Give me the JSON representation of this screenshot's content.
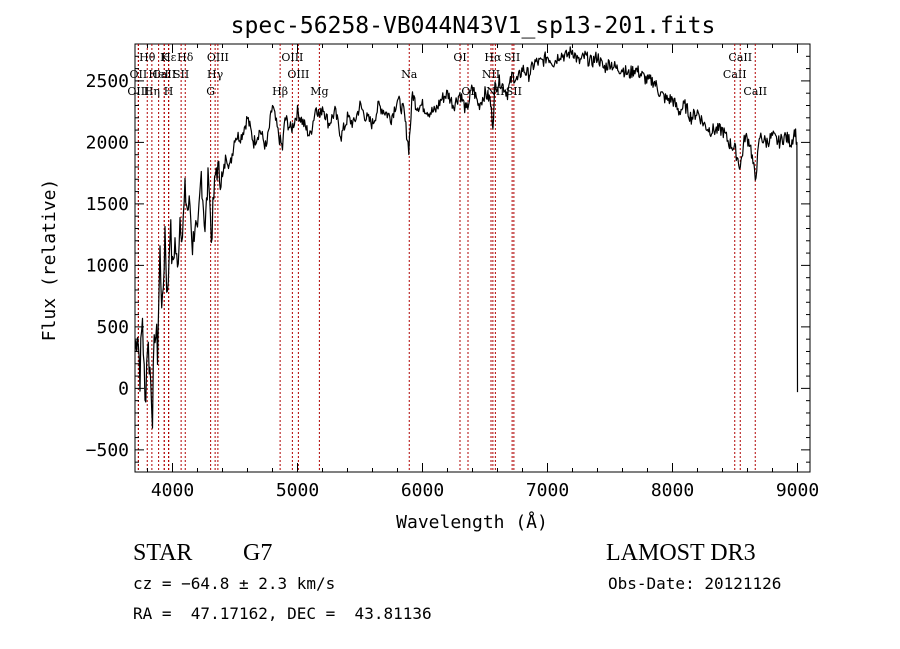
{
  "chart_data": {
    "type": "line",
    "title": "spec-56258-VB044N43V1_sp13-201.fits",
    "xlabel": "Wavelength (Å)",
    "ylabel": "Flux (relative)",
    "xlim": [
      3700,
      9100
    ],
    "ylim": [
      -680,
      2800
    ],
    "xticks": [
      4000,
      5000,
      6000,
      7000,
      8000,
      9000
    ],
    "yticks": [
      -500,
      0,
      500,
      1000,
      1500,
      2000,
      2500
    ],
    "grid": false,
    "series": [
      {
        "name": "flux",
        "x": [
          3700,
          3720,
          3740,
          3760,
          3780,
          3800,
          3820,
          3840,
          3860,
          3880,
          3900,
          3920,
          3940,
          3960,
          3980,
          4000,
          4020,
          4040,
          4060,
          4080,
          4100,
          4120,
          4140,
          4160,
          4180,
          4200,
          4230,
          4260,
          4290,
          4310,
          4330,
          4350,
          4370,
          4400,
          4430,
          4460,
          4500,
          4550,
          4600,
          4650,
          4700,
          4750,
          4800,
          4850,
          4880,
          4900,
          4950,
          5000,
          5050,
          5100,
          5150,
          5180,
          5200,
          5250,
          5300,
          5350,
          5400,
          5450,
          5500,
          5550,
          5600,
          5650,
          5700,
          5750,
          5800,
          5850,
          5890,
          5920,
          5950,
          6000,
          6050,
          6100,
          6150,
          6200,
          6250,
          6300,
          6350,
          6400,
          6450,
          6500,
          6540,
          6563,
          6580,
          6620,
          6680,
          6720,
          6760,
          6800,
          6850,
          6900,
          6950,
          7000,
          7050,
          7100,
          7150,
          7200,
          7250,
          7300,
          7350,
          7400,
          7450,
          7500,
          7550,
          7600,
          7650,
          7700,
          7750,
          7800,
          7850,
          7900,
          7950,
          8000,
          8050,
          8100,
          8150,
          8200,
          8250,
          8300,
          8350,
          8400,
          8450,
          8498,
          8542,
          8580,
          8620,
          8662,
          8700,
          8750,
          8800,
          8850,
          8900,
          8950,
          8980,
          8995,
          9000
        ],
        "values": [
          300,
          500,
          120,
          600,
          -150,
          400,
          150,
          -170,
          500,
          300,
          1100,
          600,
          1300,
          700,
          1350,
          980,
          1200,
          950,
          1400,
          1250,
          1600,
          1450,
          1500,
          1150,
          1350,
          1200,
          1750,
          1300,
          1780,
          1200,
          1550,
          1800,
          1750,
          1700,
          1900,
          1800,
          2050,
          2050,
          2200,
          2000,
          2100,
          1950,
          2300,
          2050,
          1950,
          2200,
          2100,
          2250,
          2150,
          2050,
          2300,
          2200,
          2300,
          2150,
          2250,
          2050,
          2200,
          2150,
          2300,
          2200,
          2150,
          2300,
          2250,
          2200,
          2350,
          2250,
          1950,
          2400,
          2300,
          2300,
          2250,
          2250,
          2350,
          2400,
          2300,
          2400,
          2250,
          2450,
          2300,
          2400,
          2350,
          2150,
          2450,
          2500,
          2400,
          2550,
          2500,
          2600,
          2550,
          2650,
          2650,
          2700,
          2650,
          2720,
          2700,
          2750,
          2650,
          2700,
          2650,
          2700,
          2600,
          2650,
          2600,
          2600,
          2550,
          2600,
          2550,
          2500,
          2500,
          2400,
          2350,
          2350,
          2250,
          2300,
          2200,
          2250,
          2150,
          2100,
          2100,
          2100,
          2000,
          1950,
          1800,
          2050,
          2000,
          1700,
          2050,
          2000,
          2050,
          2000,
          2050,
          2000,
          2100,
          2000,
          -30
        ]
      }
    ],
    "lines": [
      {
        "name": "CaII",
        "x": 3934,
        "label_row": 2
      },
      {
        "name": "Hε",
        "x": 3970,
        "label_row": 1
      },
      {
        "name": "Hθ",
        "x": 3798,
        "label_row": 1
      },
      {
        "name": "OII",
        "x": 3727,
        "label_row": 2
      },
      {
        "name": "OIII",
        "x": 3727,
        "label_row": 3
      },
      {
        "name": "Hη",
        "x": 3835,
        "label_row": 3
      },
      {
        "name": "K",
        "x": 3934,
        "label_row": 1
      },
      {
        "name": "H",
        "x": 3968,
        "label_row": 3
      },
      {
        "name": "HeI",
        "x": 3889,
        "label_row": 2
      },
      {
        "name": "Hδ",
        "x": 4102,
        "label_row": 1
      },
      {
        "name": "SII",
        "x": 4069,
        "label_row": 2
      },
      {
        "name": "OIII",
        "x": 4363,
        "label_row": 1
      },
      {
        "name": "Hγ",
        "x": 4341,
        "label_row": 2
      },
      {
        "name": "G",
        "x": 4305,
        "label_row": 3
      },
      {
        "name": "OIII",
        "x": 4959,
        "label_row": 1
      },
      {
        "name": "OIII",
        "x": 5007,
        "label_row": 2
      },
      {
        "name": "Hβ",
        "x": 4861,
        "label_row": 3
      },
      {
        "name": "Mg",
        "x": 5175,
        "label_row": 3
      },
      {
        "name": "Na",
        "x": 5894,
        "label_row": 2
      },
      {
        "name": "OI",
        "x": 6300,
        "label_row": 1
      },
      {
        "name": "OI",
        "x": 6364,
        "label_row": 3
      },
      {
        "name": "Hα",
        "x": 6563,
        "label_row": 1
      },
      {
        "name": "SII",
        "x": 6717,
        "label_row": 1
      },
      {
        "name": "NII",
        "x": 6548,
        "label_row": 2
      },
      {
        "name": "NII",
        "x": 6583,
        "label_row": 3
      },
      {
        "name": "SII",
        "x": 6731,
        "label_row": 3
      },
      {
        "name": "CaII",
        "x": 8542,
        "label_row": 1
      },
      {
        "name": "CaII",
        "x": 8498,
        "label_row": 2
      },
      {
        "name": "CaII",
        "x": 8662,
        "label_row": 3
      }
    ]
  },
  "info": {
    "class": "STAR",
    "subclass": "G7",
    "survey": "LAMOST DR3",
    "cz": "cz = −64.8 ± 2.3 km/s",
    "obs_date": "Obs-Date: 20121126",
    "radec": "RA =  47.17162, DEC =  43.81136"
  }
}
